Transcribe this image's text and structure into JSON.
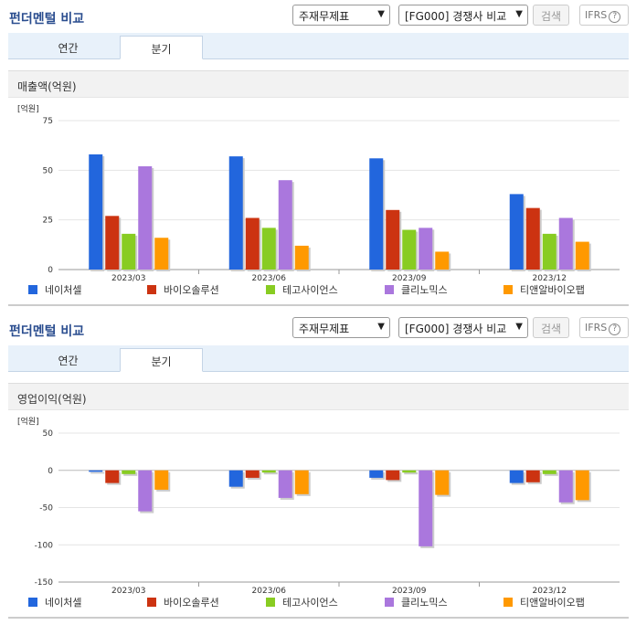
{
  "panels": [
    {
      "title": "펀더멘털 비교",
      "select_report": "주재무제표",
      "select_compare": "[FG000] 경쟁사 비교",
      "search_label": "검색",
      "ifrs_label": "IFRS",
      "ifrs_help": "?",
      "tabs": [
        "연간",
        "분기"
      ],
      "active_tab": 1,
      "subheading": "매출액(억원)"
    },
    {
      "title": "펀더멘털 비교",
      "select_report": "주재무제표",
      "select_compare": "[FG000] 경쟁사 비교",
      "search_label": "검색",
      "ifrs_label": "IFRS",
      "ifrs_help": "?",
      "tabs": [
        "연간",
        "분기"
      ],
      "active_tab": 1,
      "subheading": "영업이익(억원)"
    }
  ],
  "colors": {
    "series": [
      "#2266dd",
      "#cc3311",
      "#88cc22",
      "#aa77dd",
      "#ff9900"
    ],
    "title": "#2a4d8f"
  },
  "chart_data": [
    {
      "type": "bar",
      "unit_label": "[억원]",
      "categories": [
        "2023/03",
        "2023/06",
        "2023/09",
        "2023/12"
      ],
      "ylim": [
        0,
        75
      ],
      "yticks": [
        0,
        25,
        50,
        75
      ],
      "grid": true,
      "legend_position": "bottom",
      "series": [
        {
          "name": "네이처셀",
          "values": [
            58,
            57,
            56,
            38
          ]
        },
        {
          "name": "바이오솔루션",
          "values": [
            27,
            26,
            30,
            31
          ]
        },
        {
          "name": "테고사이언스",
          "values": [
            18,
            21,
            20,
            18
          ]
        },
        {
          "name": "클리노믹스",
          "values": [
            52,
            45,
            21,
            26
          ]
        },
        {
          "name": "티앤알바이오팹",
          "values": [
            16,
            12,
            9,
            14
          ]
        }
      ]
    },
    {
      "type": "bar",
      "unit_label": "[억원]",
      "categories": [
        "2023/03",
        "2023/06",
        "2023/09",
        "2023/12"
      ],
      "ylim": [
        -150,
        50
      ],
      "yticks": [
        50,
        0,
        -50,
        -100,
        -150
      ],
      "grid": true,
      "legend_position": "bottom",
      "series": [
        {
          "name": "네이처셀",
          "values": [
            -2,
            -22,
            -10,
            -17
          ]
        },
        {
          "name": "바이오솔루션",
          "values": [
            -17,
            -10,
            -13,
            -16
          ]
        },
        {
          "name": "테고사이언스",
          "values": [
            -5,
            -3,
            -3,
            -5
          ]
        },
        {
          "name": "클리노믹스",
          "values": [
            -55,
            -37,
            -102,
            -43
          ]
        },
        {
          "name": "티앤알바이오팹",
          "values": [
            -26,
            -32,
            -33,
            -40
          ]
        }
      ]
    }
  ]
}
